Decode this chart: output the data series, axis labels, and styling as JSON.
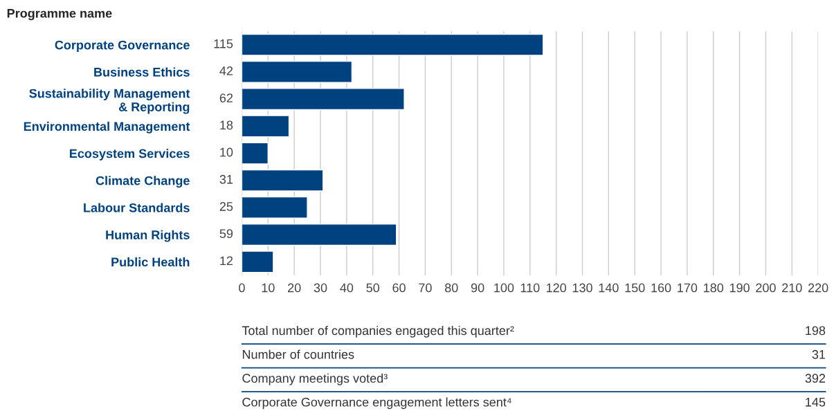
{
  "chart_data": {
    "type": "bar",
    "orientation": "horizontal",
    "title": "Programme name",
    "categories": [
      "Corporate Governance",
      "Business Ethics",
      "Sustainability Management\n& Reporting",
      "Environmental Management",
      "Ecosystem Services",
      "Climate Change",
      "Labour Standards",
      "Human Rights",
      "Public Health"
    ],
    "values": [
      115,
      42,
      62,
      18,
      10,
      31,
      25,
      59,
      12
    ],
    "color": "#00427f",
    "xlim": [
      0,
      220
    ],
    "xticks": [
      0,
      10,
      20,
      30,
      40,
      50,
      60,
      70,
      80,
      90,
      100,
      110,
      120,
      130,
      140,
      150,
      160,
      170,
      180,
      190,
      200,
      210,
      220
    ],
    "grid": "x",
    "data_labels": true,
    "legend": false,
    "annotations": [
      "Total number of companies engaged this quarter²",
      "198",
      "Number of countries",
      "31",
      "Company meetings voted³",
      "392",
      "Corporate Governance engagement letters sent⁴",
      "145"
    ]
  }
}
